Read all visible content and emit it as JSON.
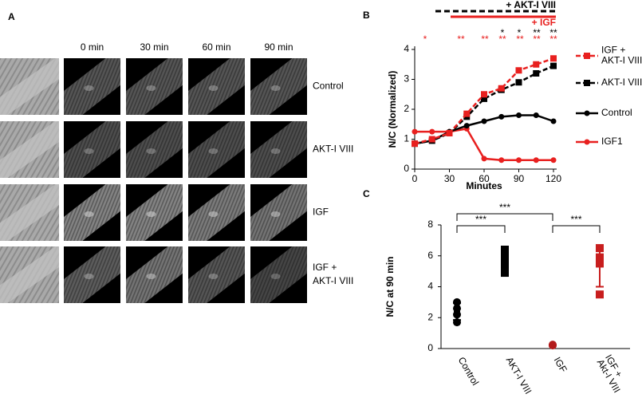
{
  "panel_a": {
    "label": "A",
    "columns": [
      "0 min",
      "30 min",
      "60 min",
      "90 min"
    ],
    "rows": [
      "Control",
      "AKT-I VIII",
      "IGF",
      "IGF + AKT-I VIII"
    ]
  },
  "chart_data": [
    {
      "type": "line",
      "panel_label": "B",
      "xlabel": "Minutes",
      "ylabel": "N/C (Normalized)",
      "x": [
        0,
        15,
        30,
        45,
        60,
        75,
        90,
        105,
        120
      ],
      "xlim": [
        0,
        120
      ],
      "xticks": [
        0,
        30,
        60,
        90,
        120
      ],
      "ylim": [
        0,
        4
      ],
      "yticks": [
        0,
        1,
        2,
        3,
        4
      ],
      "series": [
        {
          "name": "IGF + AKT-I VIII",
          "color": "#e8201f",
          "dashed": true,
          "marker": "square",
          "values": [
            0.85,
            1.0,
            1.2,
            1.85,
            2.5,
            2.7,
            3.3,
            3.5,
            3.7
          ]
        },
        {
          "name": "AKT-I VIII",
          "color": "#000000",
          "dashed": true,
          "marker": "square",
          "values": [
            0.85,
            0.95,
            1.2,
            1.75,
            2.35,
            2.65,
            2.9,
            3.2,
            3.45
          ]
        },
        {
          "name": "Control",
          "color": "#000000",
          "dashed": false,
          "marker": "circle",
          "values": [
            0.85,
            0.95,
            1.25,
            1.45,
            1.6,
            1.75,
            1.8,
            1.8,
            1.6
          ]
        },
        {
          "name": "IGF1",
          "color": "#e8201f",
          "dashed": false,
          "marker": "circle",
          "values": [
            1.25,
            1.25,
            1.25,
            1.35,
            0.35,
            0.3,
            0.3,
            0.3,
            0.3
          ]
        }
      ],
      "treatments": [
        {
          "text": "+ AKT-I VIII",
          "color": "#000000",
          "dashed": true
        },
        {
          "text": "+ IGF",
          "color": "#e8201f",
          "dashed": false
        }
      ],
      "significance": [
        {
          "color": "#000000",
          "labels": [
            "*",
            "*",
            "**",
            "**"
          ]
        },
        {
          "color": "#e8201f",
          "labels": [
            "*",
            "**",
            "**",
            "**",
            "**",
            "**",
            "**"
          ]
        }
      ]
    },
    {
      "type": "dot",
      "panel_label": "C",
      "ylabel": "N/C at 90 min",
      "categories": [
        "Control",
        "AKT-I VIII",
        "IGF",
        "IGF + Akt-I VIII"
      ],
      "ylim": [
        0,
        8
      ],
      "yticks": [
        0,
        2,
        4,
        6,
        8
      ],
      "groups": [
        {
          "color": "#000000",
          "marker": "circle",
          "values": [
            3.0,
            2.6,
            2.2,
            1.7
          ],
          "mean": 2.4,
          "sd": 0.55
        },
        {
          "color": "#000000",
          "marker": "square",
          "values": [
            6.4,
            5.9,
            5.4,
            4.9
          ],
          "mean": 5.6,
          "sd": 0.6
        },
        {
          "color": "#b31b1b",
          "marker": "circle",
          "values": [
            0.25,
            0.2
          ],
          "mean": 0.22,
          "sd": 0.03
        },
        {
          "color": "#c81e1e",
          "marker": "square",
          "values": [
            6.5,
            5.9,
            5.5,
            3.5
          ],
          "mean": 5.3,
          "sd": 1.3
        }
      ],
      "significance": [
        "***",
        "***",
        "***"
      ]
    }
  ]
}
